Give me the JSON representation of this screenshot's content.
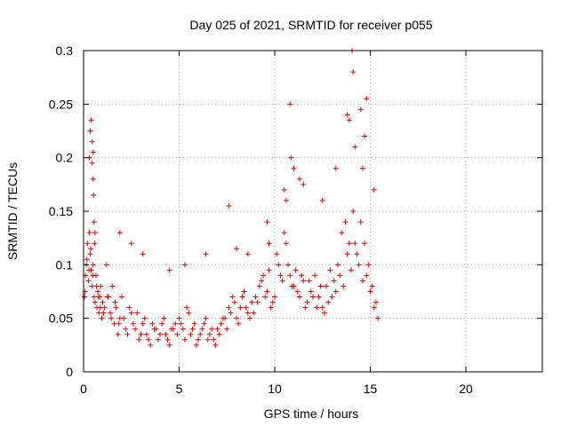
{
  "chart_data": {
    "type": "scatter",
    "title": "Day 025 of 2021, SRMTID for receiver p055",
    "xlabel": "GPS time / hours",
    "ylabel": "SRMTID / TECUs",
    "xlim": [
      0,
      24
    ],
    "ylim": [
      0,
      0.3
    ],
    "x_ticks": [
      0,
      5,
      10,
      15,
      20
    ],
    "x_tick_labels": [
      "0",
      "5",
      "10",
      "15",
      "20"
    ],
    "y_ticks": [
      0,
      0.05,
      0.1,
      0.15,
      0.2,
      0.25,
      0.3
    ],
    "y_tick_labels": [
      "0",
      "0.05",
      "0.1",
      "0.15",
      "0.2",
      "0.25",
      "0.3"
    ],
    "grid": true,
    "marker": "plus",
    "color": "#e00000",
    "series": [
      {
        "name": "SRMTID",
        "x": [
          0.05,
          0.1,
          0.15,
          0.2,
          0.25,
          0.3,
          0.35,
          0.4,
          0.45,
          0.5,
          0.55,
          0.6,
          0.65,
          0.7,
          0.75,
          0.8,
          0.85,
          0.9,
          0.95,
          1.0,
          1.1,
          1.2,
          1.3,
          1.4,
          1.5,
          1.6,
          1.7,
          1.8,
          1.9,
          2.0,
          2.2,
          2.4,
          2.6,
          2.8,
          3.0,
          3.2,
          3.4,
          3.6,
          3.8,
          4.0,
          4.2,
          4.4,
          4.6,
          4.8,
          5.0,
          5.2,
          5.4,
          5.6,
          5.8,
          6.0,
          6.2,
          6.4,
          6.6,
          6.8,
          7.0,
          7.2,
          7.4,
          7.6,
          7.8,
          8.0,
          8.2,
          8.4,
          8.6,
          8.8,
          9.0,
          9.2,
          9.4,
          9.6,
          9.8,
          10.0,
          10.2,
          10.4,
          10.6,
          10.8,
          11.0,
          11.2,
          11.4,
          11.6,
          11.8,
          12.0,
          12.2,
          12.4,
          12.6,
          12.8,
          13.0,
          13.2,
          13.4,
          13.6,
          13.8,
          14.0,
          14.2,
          14.4,
          14.6,
          14.8,
          15.0,
          15.2,
          15.4,
          0.08,
          0.18,
          0.28,
          0.38,
          0.48,
          0.58,
          0.68,
          0.78,
          0.88,
          1.05,
          1.25,
          1.45,
          1.65,
          1.85,
          2.1,
          2.3,
          2.5,
          2.7,
          2.9,
          3.1,
          3.3,
          3.5,
          3.7,
          3.9,
          4.1,
          4.3,
          4.5,
          4.7,
          4.9,
          5.1,
          5.3,
          5.5,
          5.7,
          5.9,
          6.1,
          6.3,
          6.5,
          6.7,
          6.9,
          7.1,
          7.3,
          7.5,
          7.7,
          7.9,
          8.1,
          8.3,
          8.5,
          8.7,
          8.9,
          9.1,
          9.3,
          9.5,
          9.7,
          9.9,
          10.1,
          10.3,
          10.5,
          10.7,
          10.9,
          11.1,
          11.3,
          11.5,
          11.7,
          11.9,
          12.1,
          12.3,
          12.5,
          12.7,
          12.9,
          13.1,
          13.3,
          13.5,
          13.7,
          13.9,
          14.1,
          14.3,
          14.5,
          14.7,
          14.9,
          15.1,
          15.3,
          0.3,
          0.35,
          0.4,
          0.45,
          0.5,
          0.52,
          0.55,
          0.6,
          0.45,
          0.5,
          10.8,
          10.85,
          11.0,
          14.05,
          14.1,
          14.8,
          14.7,
          14.5,
          13.8,
          13.9,
          14.2,
          14.6,
          10.5,
          10.6,
          11.3,
          11.5,
          9.6,
          9.7,
          7.6,
          1.9,
          2.5,
          3.1,
          4.5,
          5.3,
          6.4,
          8.0,
          8.6,
          12.5,
          13.2,
          15.2
        ],
        "y": [
          0.07,
          0.09,
          0.1,
          0.12,
          0.085,
          0.13,
          0.11,
          0.095,
          0.08,
          0.1,
          0.07,
          0.065,
          0.09,
          0.06,
          0.075,
          0.055,
          0.07,
          0.08,
          0.05,
          0.065,
          0.06,
          0.1,
          0.07,
          0.055,
          0.08,
          0.045,
          0.06,
          0.035,
          0.05,
          0.07,
          0.04,
          0.06,
          0.045,
          0.055,
          0.035,
          0.05,
          0.03,
          0.045,
          0.04,
          0.035,
          0.05,
          0.03,
          0.04,
          0.045,
          0.05,
          0.04,
          0.06,
          0.035,
          0.045,
          0.03,
          0.04,
          0.05,
          0.035,
          0.03,
          0.04,
          0.045,
          0.05,
          0.06,
          0.07,
          0.05,
          0.06,
          0.075,
          0.055,
          0.065,
          0.07,
          0.08,
          0.09,
          0.075,
          0.06,
          0.07,
          0.1,
          0.085,
          0.12,
          0.09,
          0.08,
          0.075,
          0.09,
          0.06,
          0.085,
          0.07,
          0.06,
          0.08,
          0.055,
          0.065,
          0.07,
          0.075,
          0.09,
          0.08,
          0.11,
          0.095,
          0.12,
          0.1,
          0.085,
          0.09,
          0.075,
          0.06,
          0.05,
          0.075,
          0.105,
          0.095,
          0.115,
          0.09,
          0.12,
          0.08,
          0.07,
          0.06,
          0.055,
          0.07,
          0.05,
          0.065,
          0.045,
          0.05,
          0.035,
          0.055,
          0.04,
          0.03,
          0.045,
          0.035,
          0.025,
          0.04,
          0.03,
          0.045,
          0.035,
          0.025,
          0.04,
          0.035,
          0.045,
          0.03,
          0.055,
          0.04,
          0.025,
          0.035,
          0.045,
          0.03,
          0.04,
          0.025,
          0.035,
          0.05,
          0.04,
          0.055,
          0.065,
          0.045,
          0.07,
          0.06,
          0.05,
          0.055,
          0.065,
          0.085,
          0.07,
          0.095,
          0.065,
          0.11,
          0.09,
          0.13,
          0.1,
          0.08,
          0.095,
          0.07,
          0.085,
          0.065,
          0.075,
          0.09,
          0.07,
          0.06,
          0.08,
          0.095,
          0.085,
          0.1,
          0.13,
          0.14,
          0.12,
          0.15,
          0.11,
          0.14,
          0.12,
          0.1,
          0.08,
          0.065,
          0.2,
          0.225,
          0.235,
          0.215,
          0.18,
          0.165,
          0.14,
          0.13,
          0.195,
          0.205,
          0.25,
          0.2,
          0.19,
          0.3,
          0.28,
          0.255,
          0.22,
          0.245,
          0.24,
          0.235,
          0.21,
          0.19,
          0.17,
          0.16,
          0.18,
          0.175,
          0.14,
          0.12,
          0.155,
          0.13,
          0.12,
          0.11,
          0.095,
          0.1,
          0.11,
          0.115,
          0.11,
          0.16,
          0.19,
          0.17
        ]
      }
    ]
  }
}
